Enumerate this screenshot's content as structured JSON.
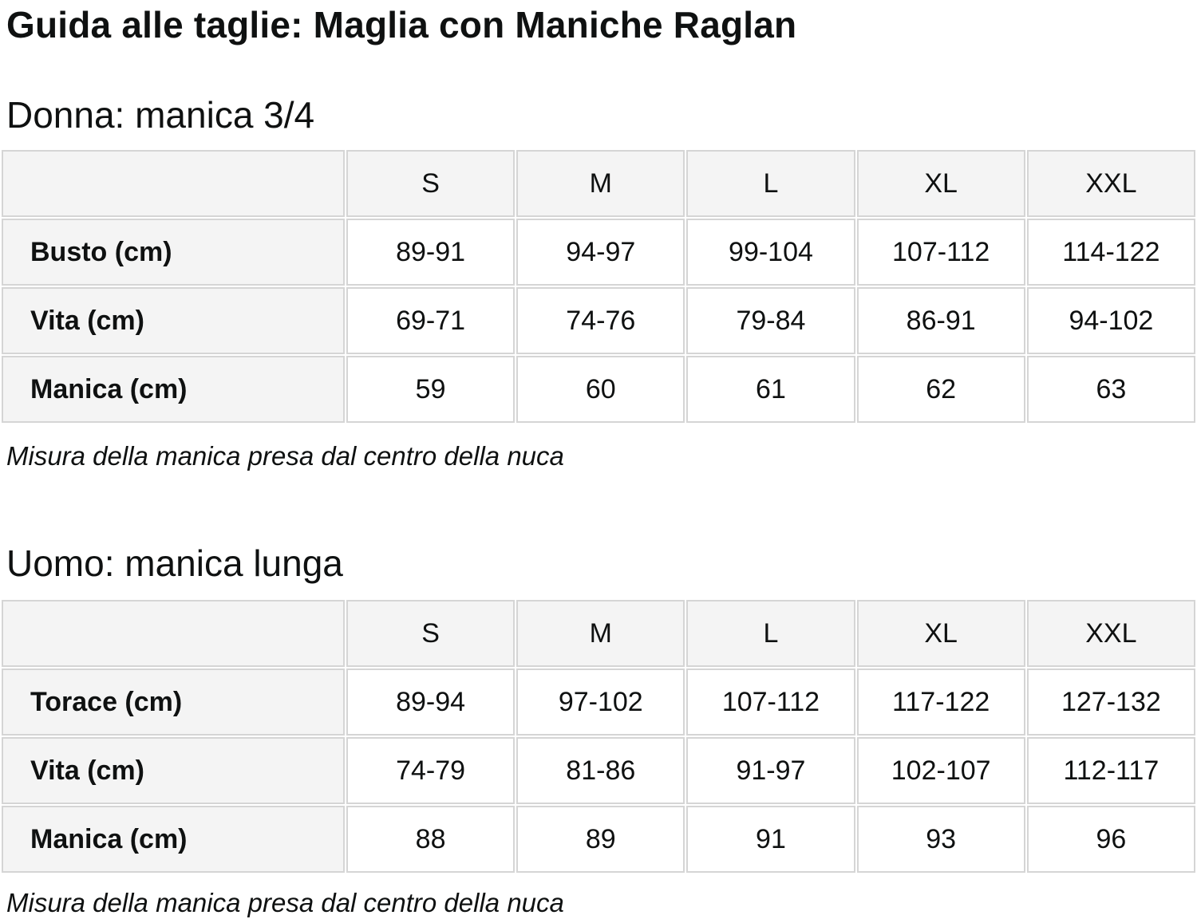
{
  "page": {
    "title": "Guida alle taglie: Maglia con Maniche Raglan"
  },
  "colors": {
    "text": "#0f1111",
    "table_border": "#d5d5d5",
    "header_and_label_bg": "#f4f4f4",
    "cell_bg": "#ffffff"
  },
  "sections": [
    {
      "heading": "Donna: manica 3/4",
      "sizes": [
        "S",
        "M",
        "L",
        "XL",
        "XXL"
      ],
      "rows": [
        {
          "label": "Busto (cm)",
          "values": [
            "89-91",
            "94-97",
            "99-104",
            "107-112",
            "114-122"
          ]
        },
        {
          "label": "Vita (cm)",
          "values": [
            "69-71",
            "74-76",
            "79-84",
            "86-91",
            "94-102"
          ]
        },
        {
          "label": "Manica (cm)",
          "values": [
            "59",
            "60",
            "61",
            "62",
            "63"
          ]
        }
      ],
      "note": "Misura della manica presa dal centro della nuca"
    },
    {
      "heading": "Uomo: manica lunga",
      "sizes": [
        "S",
        "M",
        "L",
        "XL",
        "XXL"
      ],
      "rows": [
        {
          "label": "Torace (cm)",
          "values": [
            "89-94",
            "97-102",
            "107-112",
            "117-122",
            "127-132"
          ]
        },
        {
          "label": "Vita (cm)",
          "values": [
            "74-79",
            "81-86",
            "91-97",
            "102-107",
            "112-117"
          ]
        },
        {
          "label": "Manica (cm)",
          "values": [
            "88",
            "89",
            "91",
            "93",
            "96"
          ]
        }
      ],
      "note": "Misura della manica presa dal centro della nuca"
    }
  ]
}
